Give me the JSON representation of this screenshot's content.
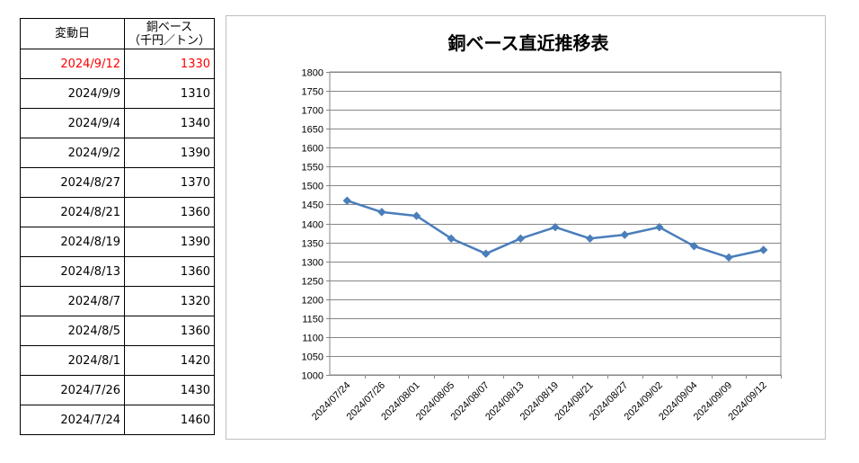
{
  "table": {
    "header": {
      "date_label": "変動日",
      "price_label_line1": "銅ベース",
      "price_label_line2": "（千円／トン）"
    },
    "rows": [
      {
        "date": "2024/9/12",
        "price": "1330",
        "highlight": true
      },
      {
        "date": "2024/9/9",
        "price": "1310",
        "highlight": false
      },
      {
        "date": "2024/9/4",
        "price": "1340",
        "highlight": false
      },
      {
        "date": "2024/9/2",
        "price": "1390",
        "highlight": false
      },
      {
        "date": "2024/8/27",
        "price": "1370",
        "highlight": false
      },
      {
        "date": "2024/8/21",
        "price": "1360",
        "highlight": false
      },
      {
        "date": "2024/8/19",
        "price": "1390",
        "highlight": false
      },
      {
        "date": "2024/8/13",
        "price": "1360",
        "highlight": false
      },
      {
        "date": "2024/8/7",
        "price": "1320",
        "highlight": false
      },
      {
        "date": "2024/8/5",
        "price": "1360",
        "highlight": false
      },
      {
        "date": "2024/8/1",
        "price": "1420",
        "highlight": false
      },
      {
        "date": "2024/7/26",
        "price": "1430",
        "highlight": false
      },
      {
        "date": "2024/7/24",
        "price": "1460",
        "highlight": false
      }
    ],
    "highlight_color": "#ff0000"
  },
  "chart_data": {
    "type": "line",
    "title": "銅ベース直近推移表",
    "xlabel": "",
    "ylabel": "",
    "categories": [
      "2024/07/24",
      "2024/07/26",
      "2024/08/01",
      "2024/08/05",
      "2024/08/07",
      "2024/08/13",
      "2024/08/19",
      "2024/08/21",
      "2024/08/27",
      "2024/09/02",
      "2024/09/04",
      "2024/09/09",
      "2024/09/12"
    ],
    "series": [
      {
        "values": [
          1460,
          1430,
          1420,
          1360,
          1320,
          1360,
          1390,
          1360,
          1370,
          1390,
          1340,
          1310,
          1330
        ],
        "color": "#4a7ebb"
      }
    ],
    "ylim": [
      1000,
      1800
    ],
    "y_step": 50,
    "grid": true,
    "marker": "diamond",
    "legend": "none"
  }
}
